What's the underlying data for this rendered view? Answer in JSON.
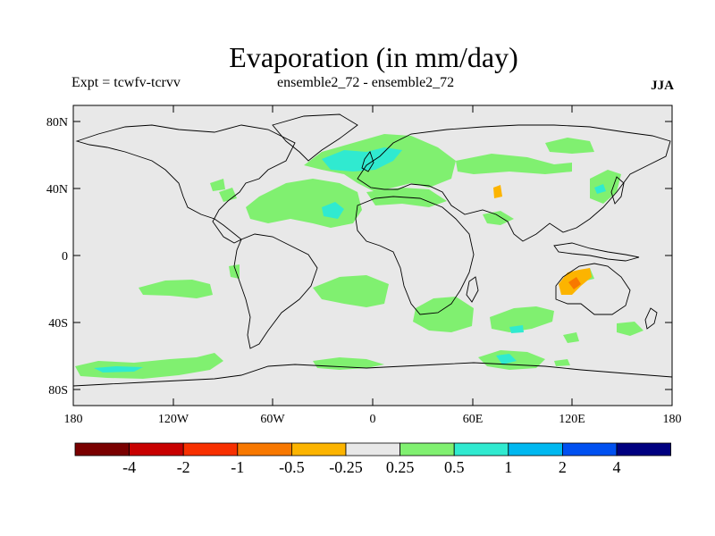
{
  "header": {
    "title": "Evaporation (in mm/day)",
    "expt_label": "Expt = tcwfv-tcrvv",
    "subtitle": "ensemble2_72 - ensemble2_72",
    "season": "JJA"
  },
  "map": {
    "lat_ticks": [
      "80N",
      "40N",
      "0",
      "40S",
      "80S"
    ],
    "lon_ticks": [
      "180",
      "120W",
      "60W",
      "0",
      "60E",
      "120E",
      "180"
    ],
    "land_color": "#e8e8e8",
    "colors": {
      "coast": "#000000",
      "positive_0_25_to_0_5": "#80f070",
      "positive_0_5_to_1": "#30ead0",
      "positive_1_to_2": "#00b8f0",
      "negative_0_25_to_0_5": "#fcb400",
      "negative_0_5_to_1": "#f87800"
    }
  },
  "colorbar": {
    "colors": [
      "#7a0000",
      "#c80000",
      "#f83000",
      "#f87800",
      "#fcb400",
      "#e8e8e8",
      "#80f070",
      "#30ead0",
      "#00b8f0",
      "#0050f0",
      "#000080"
    ],
    "labels": [
      "-4",
      "-2",
      "-1",
      "-0.5",
      "-0.25",
      "0.25",
      "0.5",
      "1",
      "2",
      "4"
    ]
  }
}
